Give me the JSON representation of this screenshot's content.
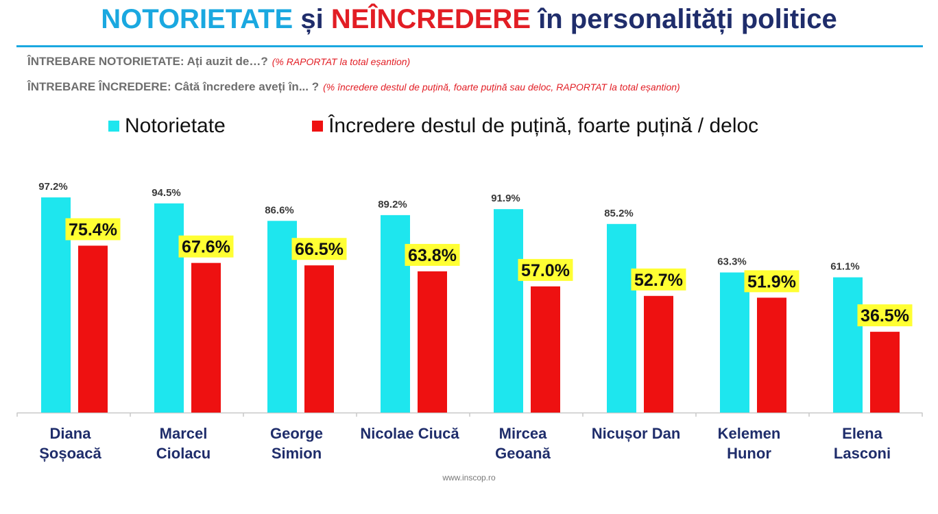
{
  "header": {
    "title_part1": "NOTORIETATE",
    "title_part2": "și",
    "title_part3": "NEÎNCREDERE",
    "title_part4": "în personalități politice",
    "q1_label": "ÎNTREBARE NOTORIETATE: Ați auzit de…?",
    "q1_note": "(% RAPORTAT la total eșantion)",
    "q2_label": "ÎNTREBARE ÎNCREDERE: Câtă încredere aveți în... ?",
    "q2_note": "(% încredere destul de puțină, foarte puțină sau deloc, RAPORTAT la total eșantion)"
  },
  "source": "www.inscop.ro",
  "colors": {
    "notorietate": "#1ee6ee",
    "neincredere": "#ee1111",
    "label_highlight": "#ffff33",
    "title_blue": "#1aa8e0",
    "title_red": "#e21d24",
    "title_navy": "#1f2d6b",
    "category_text": "#1f2d6b"
  },
  "chart_data": {
    "type": "bar",
    "categories": [
      [
        "Diana",
        "Șoșoacă"
      ],
      [
        "Marcel",
        "Ciolacu"
      ],
      [
        "George",
        "Simion"
      ],
      [
        "Nicolae Ciucă"
      ],
      [
        "Mircea",
        "Geoană"
      ],
      [
        "Nicușor Dan"
      ],
      [
        "Kelemen",
        "Hunor"
      ],
      [
        "Elena",
        "Lasconi"
      ]
    ],
    "series": [
      {
        "name": "Notorietate",
        "values": [
          97.2,
          94.5,
          86.6,
          89.2,
          91.9,
          85.2,
          63.3,
          61.1
        ],
        "labels": [
          "97.2%",
          "94.5%",
          "86.6%",
          "89.2%",
          "91.9%",
          "85.2%",
          "63.3%",
          "61.1%"
        ]
      },
      {
        "name": "Încredere destul de puțină, foarte puțină / deloc",
        "values": [
          75.4,
          67.6,
          66.5,
          63.8,
          57.0,
          52.7,
          51.9,
          36.5
        ],
        "labels": [
          "75.4%",
          "67.6%",
          "66.5%",
          "63.8%",
          "57.0%",
          "52.7%",
          "51.9%",
          "36.5%"
        ]
      }
    ],
    "ylim": [
      0,
      100
    ],
    "grid": false,
    "legend": "top"
  }
}
